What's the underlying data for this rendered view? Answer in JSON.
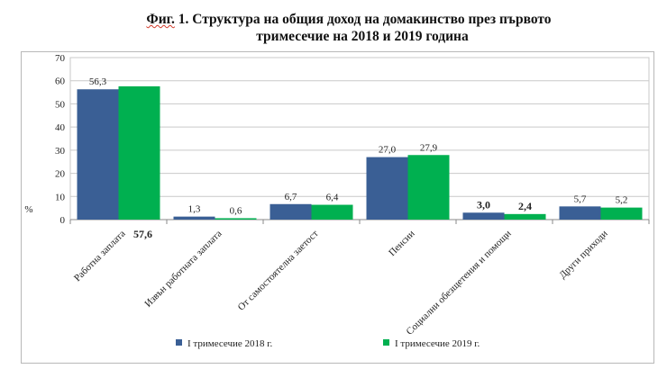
{
  "title": {
    "fig_label": "Фиг.",
    "line1_rest": " 1. Структура на общия доход на домакинство през първото",
    "line2": "тримесечие на 2018 и 2019 година"
  },
  "chart_data": {
    "type": "bar",
    "title": "Фиг. 1. Структура на общия доход на домакинство през първото тримесечие на 2018 и 2019 година",
    "ylabel": "%",
    "xlabel": "",
    "ylim": [
      0,
      70
    ],
    "yticks": [
      0,
      10,
      20,
      30,
      40,
      50,
      60,
      70
    ],
    "grid": true,
    "legend_position": "bottom",
    "categories": [
      "Работна заплата",
      "Извън работната заплата",
      "От самостоятелна заетост",
      "Пенсии",
      "Социални обезщетения и помощи",
      "Други приходи"
    ],
    "series": [
      {
        "name": "I тримесечие 2018 г.",
        "color": "#3a5f95",
        "values": [
          56.3,
          1.3,
          6.7,
          27.0,
          3.0,
          5.7
        ],
        "labels": [
          "56,3",
          "1,3",
          "6,7",
          "27,0",
          "3,0",
          "5,7"
        ]
      },
      {
        "name": "I тримесечие 2019 г.",
        "color": "#00b050",
        "values": [
          57.6,
          0.6,
          6.4,
          27.9,
          2.4,
          5.2
        ],
        "labels": [
          "57,6",
          "0,6",
          "6,4",
          "27,9",
          "2,4",
          "5,2"
        ]
      }
    ]
  }
}
